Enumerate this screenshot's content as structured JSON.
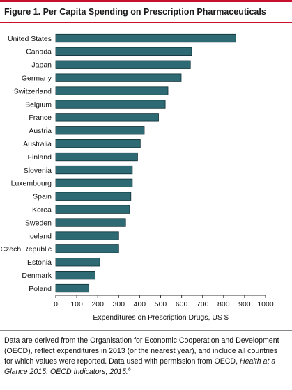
{
  "title": "Figure 1. Per Capita Spending on Prescription Pharmaceuticals",
  "colors": {
    "bar": "#2d6a74",
    "bar_edge": "#0f2f34",
    "accent": "#c8102e"
  },
  "chart_data": {
    "type": "bar",
    "orientation": "horizontal",
    "categories": [
      "United States",
      "Canada",
      "Japan",
      "Germany",
      "Switzerland",
      "Belgium",
      "France",
      "Austria",
      "Australia",
      "Finland",
      "Slovenia",
      "Luxembourg",
      "Spain",
      "Korea",
      "Sweden",
      "Iceland",
      "Czech Republic",
      "Estonia",
      "Denmark",
      "Poland"
    ],
    "values": [
      858,
      648,
      642,
      598,
      535,
      522,
      490,
      422,
      403,
      390,
      365,
      365,
      358,
      352,
      333,
      300,
      300,
      210,
      188,
      157
    ],
    "xlabel": "Expenditures on Prescription Drugs, US $",
    "ylabel": "",
    "xlim": [
      0,
      1000
    ],
    "xticks": [
      0,
      100,
      200,
      300,
      400,
      500,
      600,
      700,
      800,
      900,
      1000
    ],
    "grid": false
  },
  "note": {
    "text": "Data are derived from the Organisation for Economic Cooperation and Development (OECD), reflect expenditures in 2013 (or the nearest year), and include all countries for which values were reported. Data used with permission from OECD, ",
    "source": "Health at a Glance 2015: OECD Indicators, 2015.",
    "ref": "8"
  }
}
